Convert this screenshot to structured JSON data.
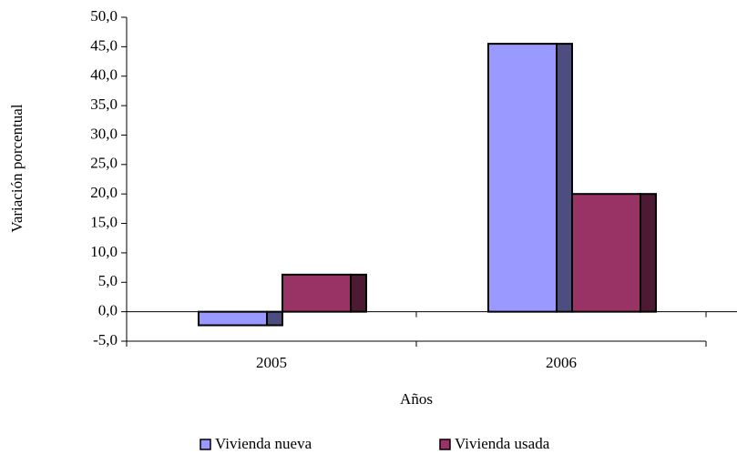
{
  "chart_data": {
    "type": "bar",
    "y_label": "Variación porcentual",
    "x_label": "Años",
    "categories": [
      "2005",
      "2006"
    ],
    "series": [
      {
        "name": "Vivienda nueva",
        "color": "#9999ff",
        "values": [
          -2.3,
          45.5
        ]
      },
      {
        "name": "Vivienda usada",
        "color": "#993366",
        "values": [
          6.3,
          20.0
        ]
      }
    ],
    "ylim": [
      -5,
      50
    ],
    "yticks": [
      {
        "value": -5,
        "label": "-5,0"
      },
      {
        "value": 0,
        "label": "0,0"
      },
      {
        "value": 5,
        "label": "5,0"
      },
      {
        "value": 10,
        "label": "10,0"
      },
      {
        "value": 15,
        "label": "15,0"
      },
      {
        "value": 20,
        "label": "20,0"
      },
      {
        "value": 25,
        "label": "25,0"
      },
      {
        "value": 30,
        "label": "30,0"
      },
      {
        "value": 35,
        "label": "35,0"
      },
      {
        "value": 40,
        "label": "40,0"
      },
      {
        "value": 45,
        "label": "45,0"
      },
      {
        "value": 50,
        "label": "50,0"
      }
    ],
    "legend": "bottom"
  }
}
